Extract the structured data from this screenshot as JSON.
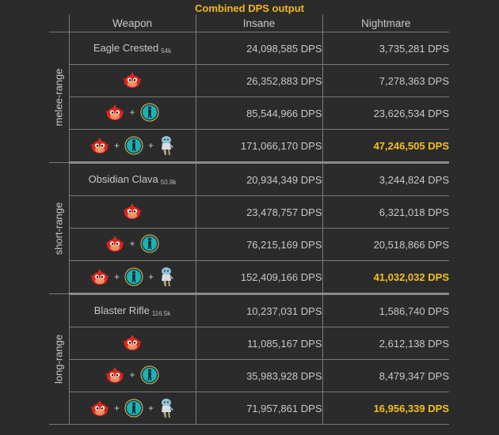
{
  "title": "Combined DPS output",
  "columns": {
    "weapon": "Weapon",
    "insane": "Insane",
    "nightmare": "Nightmare"
  },
  "plus": "+",
  "dps_unit": "DPS",
  "groups": [
    {
      "label": "melee-range",
      "weapon_name": "Eagle Crested",
      "weapon_sub": "54k",
      "rows": [
        {
          "insane": "24,098,585",
          "nightmare": "3,735,281"
        },
        {
          "insane": "26,352,883",
          "nightmare": "7,278,363"
        },
        {
          "insane": "85,544,966",
          "nightmare": "23,626,534"
        },
        {
          "insane": "171,066,170",
          "nightmare": "47,246,505"
        }
      ]
    },
    {
      "label": "short-range",
      "weapon_name": "Obsidian Clava",
      "weapon_sub": "50.9k",
      "rows": [
        {
          "insane": "20,934,349",
          "nightmare": "3,244,824"
        },
        {
          "insane": "23,478,757",
          "nightmare": "6,321,018"
        },
        {
          "insane": "76,215,169",
          "nightmare": "20,518,866"
        },
        {
          "insane": "152,409,166",
          "nightmare": "41,032,032"
        }
      ]
    },
    {
      "label": "long-range",
      "weapon_name": "Blaster Rifle",
      "weapon_sub": "116.5k",
      "rows": [
        {
          "insane": "10,237,031",
          "nightmare": "1,586,740"
        },
        {
          "insane": "11,085,167",
          "nightmare": "2,612,138"
        },
        {
          "insane": "35,983,928",
          "nightmare": "8,479,347"
        },
        {
          "insane": "71,957,861",
          "nightmare": "16,956,339"
        }
      ]
    }
  ],
  "icons": {
    "bird": "red-bird-icon",
    "buff": "cyan-figure-icon",
    "pet": "pet-figure-icon"
  },
  "colors": {
    "highlight": "#f4c01e",
    "title": "#f1b81d",
    "background": "#2b2b2b"
  }
}
